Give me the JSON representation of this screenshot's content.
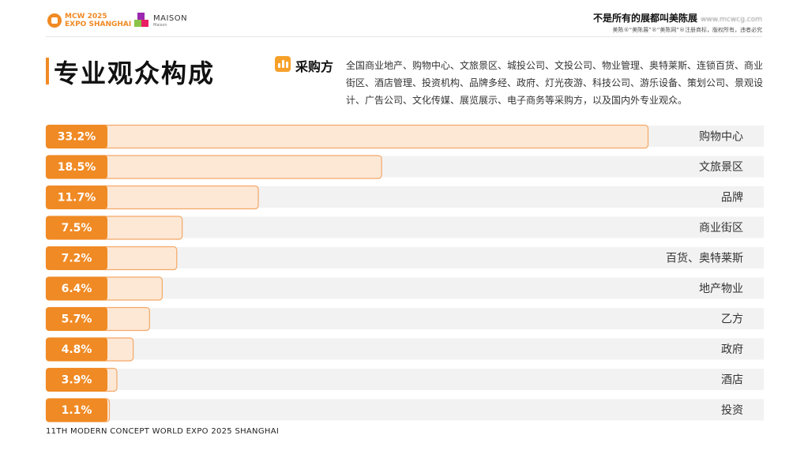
{
  "header": {
    "logo1_text": "MCW 2025\nEXPO SHANGHAI",
    "logo2_text": "MAISON",
    "logo2_sub": "Maison",
    "tagline": "不是所有的展都叫美陈展",
    "tagline_url": "www.mcwcg.com",
    "tagline_sub": "美陈®“美陈展”®“美陈网”®注册商标，版权所有，违者必究"
  },
  "title": "专业观众构成",
  "buyer": {
    "label": "采购方",
    "text": "全国商业地产、购物中心、文旅景区、城投公司、文投公司、物业管理、奥特莱斯、连锁百货、商业街区、酒店管理、投资机构、品牌多经、政府、灯光夜游、科技公司、游乐设备、策划公司、景观设计、广告公司、文化传媒、展览展示、电子商务等采购方，以及国内外专业观众。"
  },
  "footer": "11TH MODERN CONCEPT WORLD EXPO 2025 SHANGHAI",
  "colors": {
    "accent": "#f08a24",
    "bar_fill": "#fde8d6",
    "bar_border": "#f4a868",
    "track": "#f2f2f2"
  },
  "chart_data": {
    "type": "bar",
    "orientation": "horizontal",
    "categories": [
      "购物中心",
      "文旅景区",
      "品牌",
      "商业街区",
      "百货、奥特莱斯",
      "地产物业",
      "乙方",
      "政府",
      "酒店",
      "投资"
    ],
    "values": [
      33.2,
      18.5,
      11.7,
      7.5,
      7.2,
      6.4,
      5.7,
      4.8,
      3.9,
      1.1
    ],
    "labels": [
      "33.2%",
      "18.5%",
      "11.7%",
      "7.5%",
      "7.2%",
      "6.4%",
      "5.7%",
      "4.8%",
      "3.9%",
      "1.1%"
    ],
    "unit": "%",
    "xlim": [
      0,
      33.2
    ],
    "title": "",
    "xlabel": "",
    "ylabel": ""
  }
}
